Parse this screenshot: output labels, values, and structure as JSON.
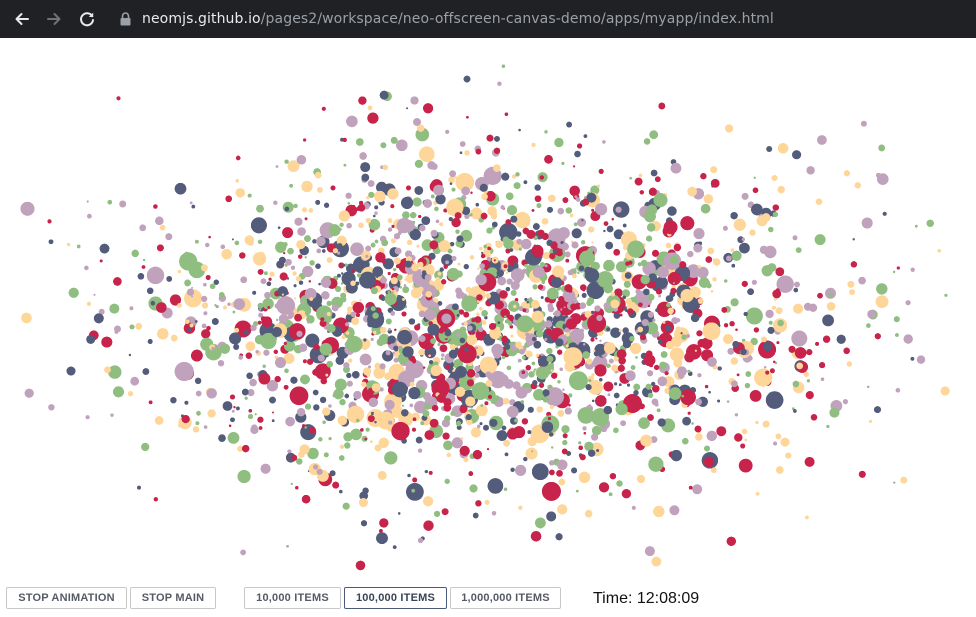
{
  "browser": {
    "url_host": "neomjs.github.io",
    "url_path": "/pages2/workspace/neo-offscreen-canvas-demo/apps/myapp/index.html",
    "back_icon": "back-arrow-icon",
    "forward_icon": "forward-arrow-icon",
    "reload_icon": "reload-icon",
    "lock_icon": "lock-icon"
  },
  "canvas": {
    "palette": [
      "#c8234a",
      "#ffd699",
      "#535c7a",
      "#8fbe80",
      "#c0a2bc"
    ]
  },
  "controls": {
    "stop_animation_label": "STOP ANIMATION",
    "stop_main_label": "STOP MAIN",
    "items_10k_label": "10,000 ITEMS",
    "items_100k_label": "100,000 ITEMS",
    "items_1m_label": "1,000,000 ITEMS",
    "time_text": "Time: 12:08:09"
  }
}
